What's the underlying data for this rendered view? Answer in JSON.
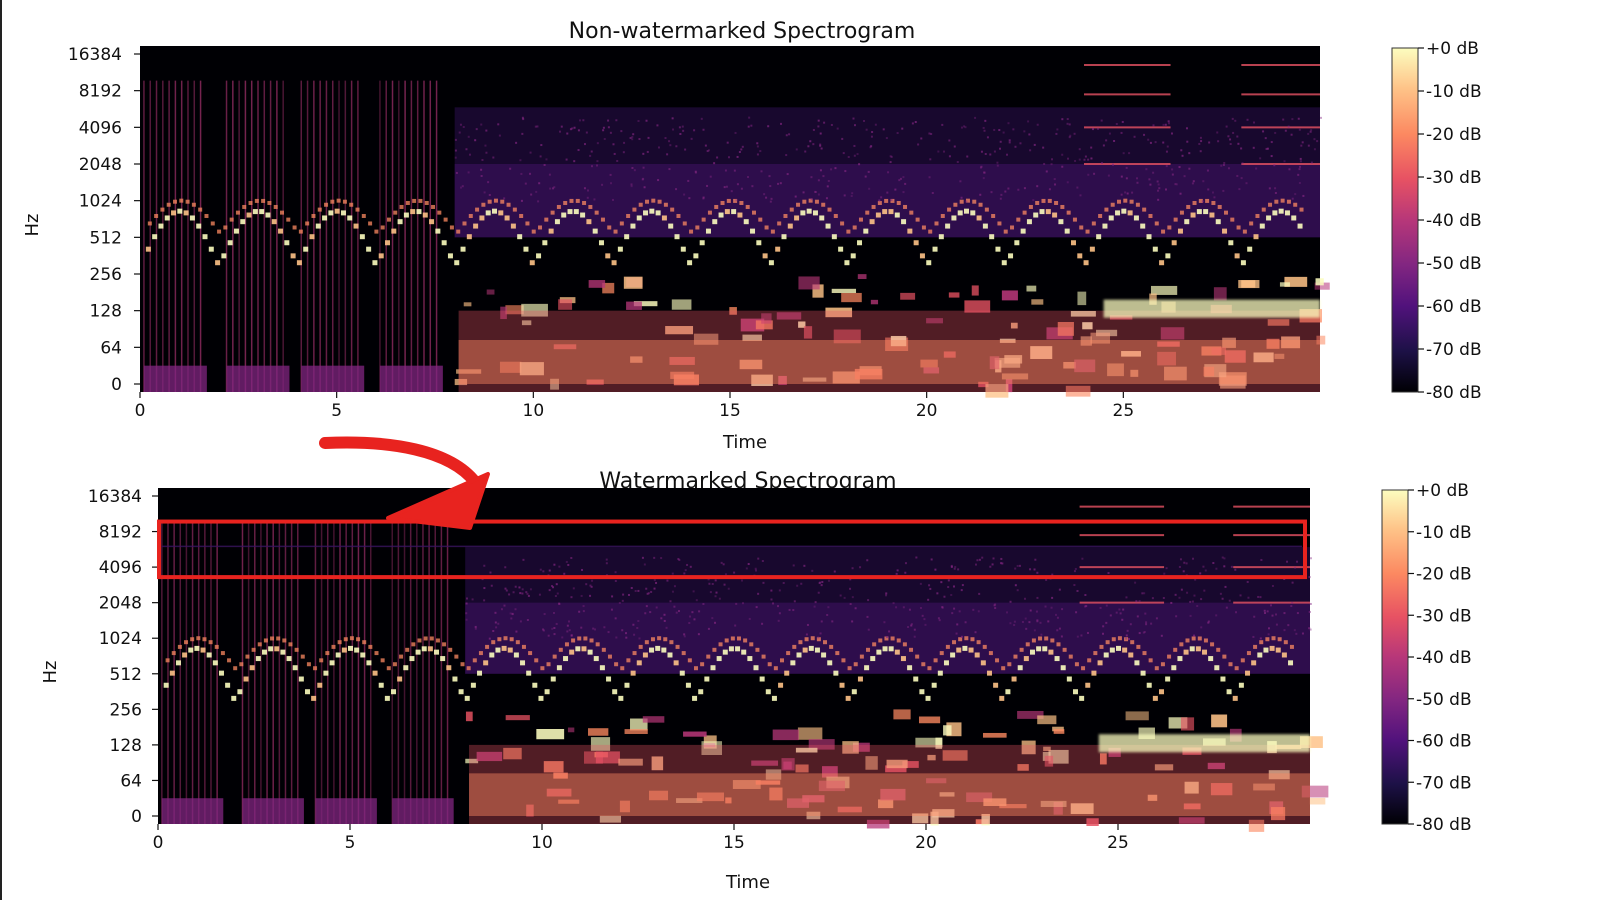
{
  "chart_data": [
    {
      "type": "heatmap",
      "title": "Non-watermarked Spectrogram",
      "xlabel": "Time",
      "ylabel": "Hz",
      "x_ticks": [
        "0",
        "5",
        "10",
        "15",
        "20",
        "25"
      ],
      "x_tick_values": [
        0,
        5,
        10,
        15,
        20,
        25
      ],
      "xlim": [
        0,
        30
      ],
      "y_ticks": [
        "0",
        "64",
        "128",
        "256",
        "512",
        "1024",
        "2048",
        "4096",
        "8192",
        "16384"
      ],
      "y_scale": "log2",
      "colorbar": {
        "ticks": [
          "+0 dB",
          "-10 dB",
          "-20 dB",
          "-30 dB",
          "-40 dB",
          "-50 dB",
          "-60 dB",
          "-70 dB",
          "-80 dB"
        ],
        "range": [
          -80,
          0
        ],
        "colormap": "magma"
      },
      "highlight_box": null
    },
    {
      "type": "heatmap",
      "title": "Watermarked Spectrogram",
      "xlabel": "Time",
      "ylabel": "Hz",
      "x_ticks": [
        "0",
        "5",
        "10",
        "15",
        "20",
        "25"
      ],
      "x_tick_values": [
        0,
        5,
        10,
        15,
        20,
        25
      ],
      "xlim": [
        0,
        30
      ],
      "y_ticks": [
        "0",
        "64",
        "128",
        "256",
        "512",
        "1024",
        "2048",
        "4096",
        "8192",
        "16384"
      ],
      "y_scale": "log2",
      "colorbar": {
        "ticks": [
          "+0 dB",
          "-10 dB",
          "-20 dB",
          "-30 dB",
          "-40 dB",
          "-50 dB",
          "-60 dB",
          "-70 dB",
          "-80 dB"
        ],
        "range": [
          -80,
          0
        ],
        "colormap": "magma"
      },
      "highlight_box": {
        "y_from_hz": 4096,
        "y_to_hz": 8192,
        "color": "#e8231f"
      }
    }
  ],
  "annotation": {
    "arrow_color": "#e8231f"
  },
  "colors": {
    "background": "#000004",
    "accent_red": "#e8231f",
    "magma": [
      "#000004",
      "#1d1147",
      "#51127c",
      "#822681",
      "#b73779",
      "#e75263",
      "#fc8961",
      "#fec287",
      "#fcfdbf"
    ]
  }
}
